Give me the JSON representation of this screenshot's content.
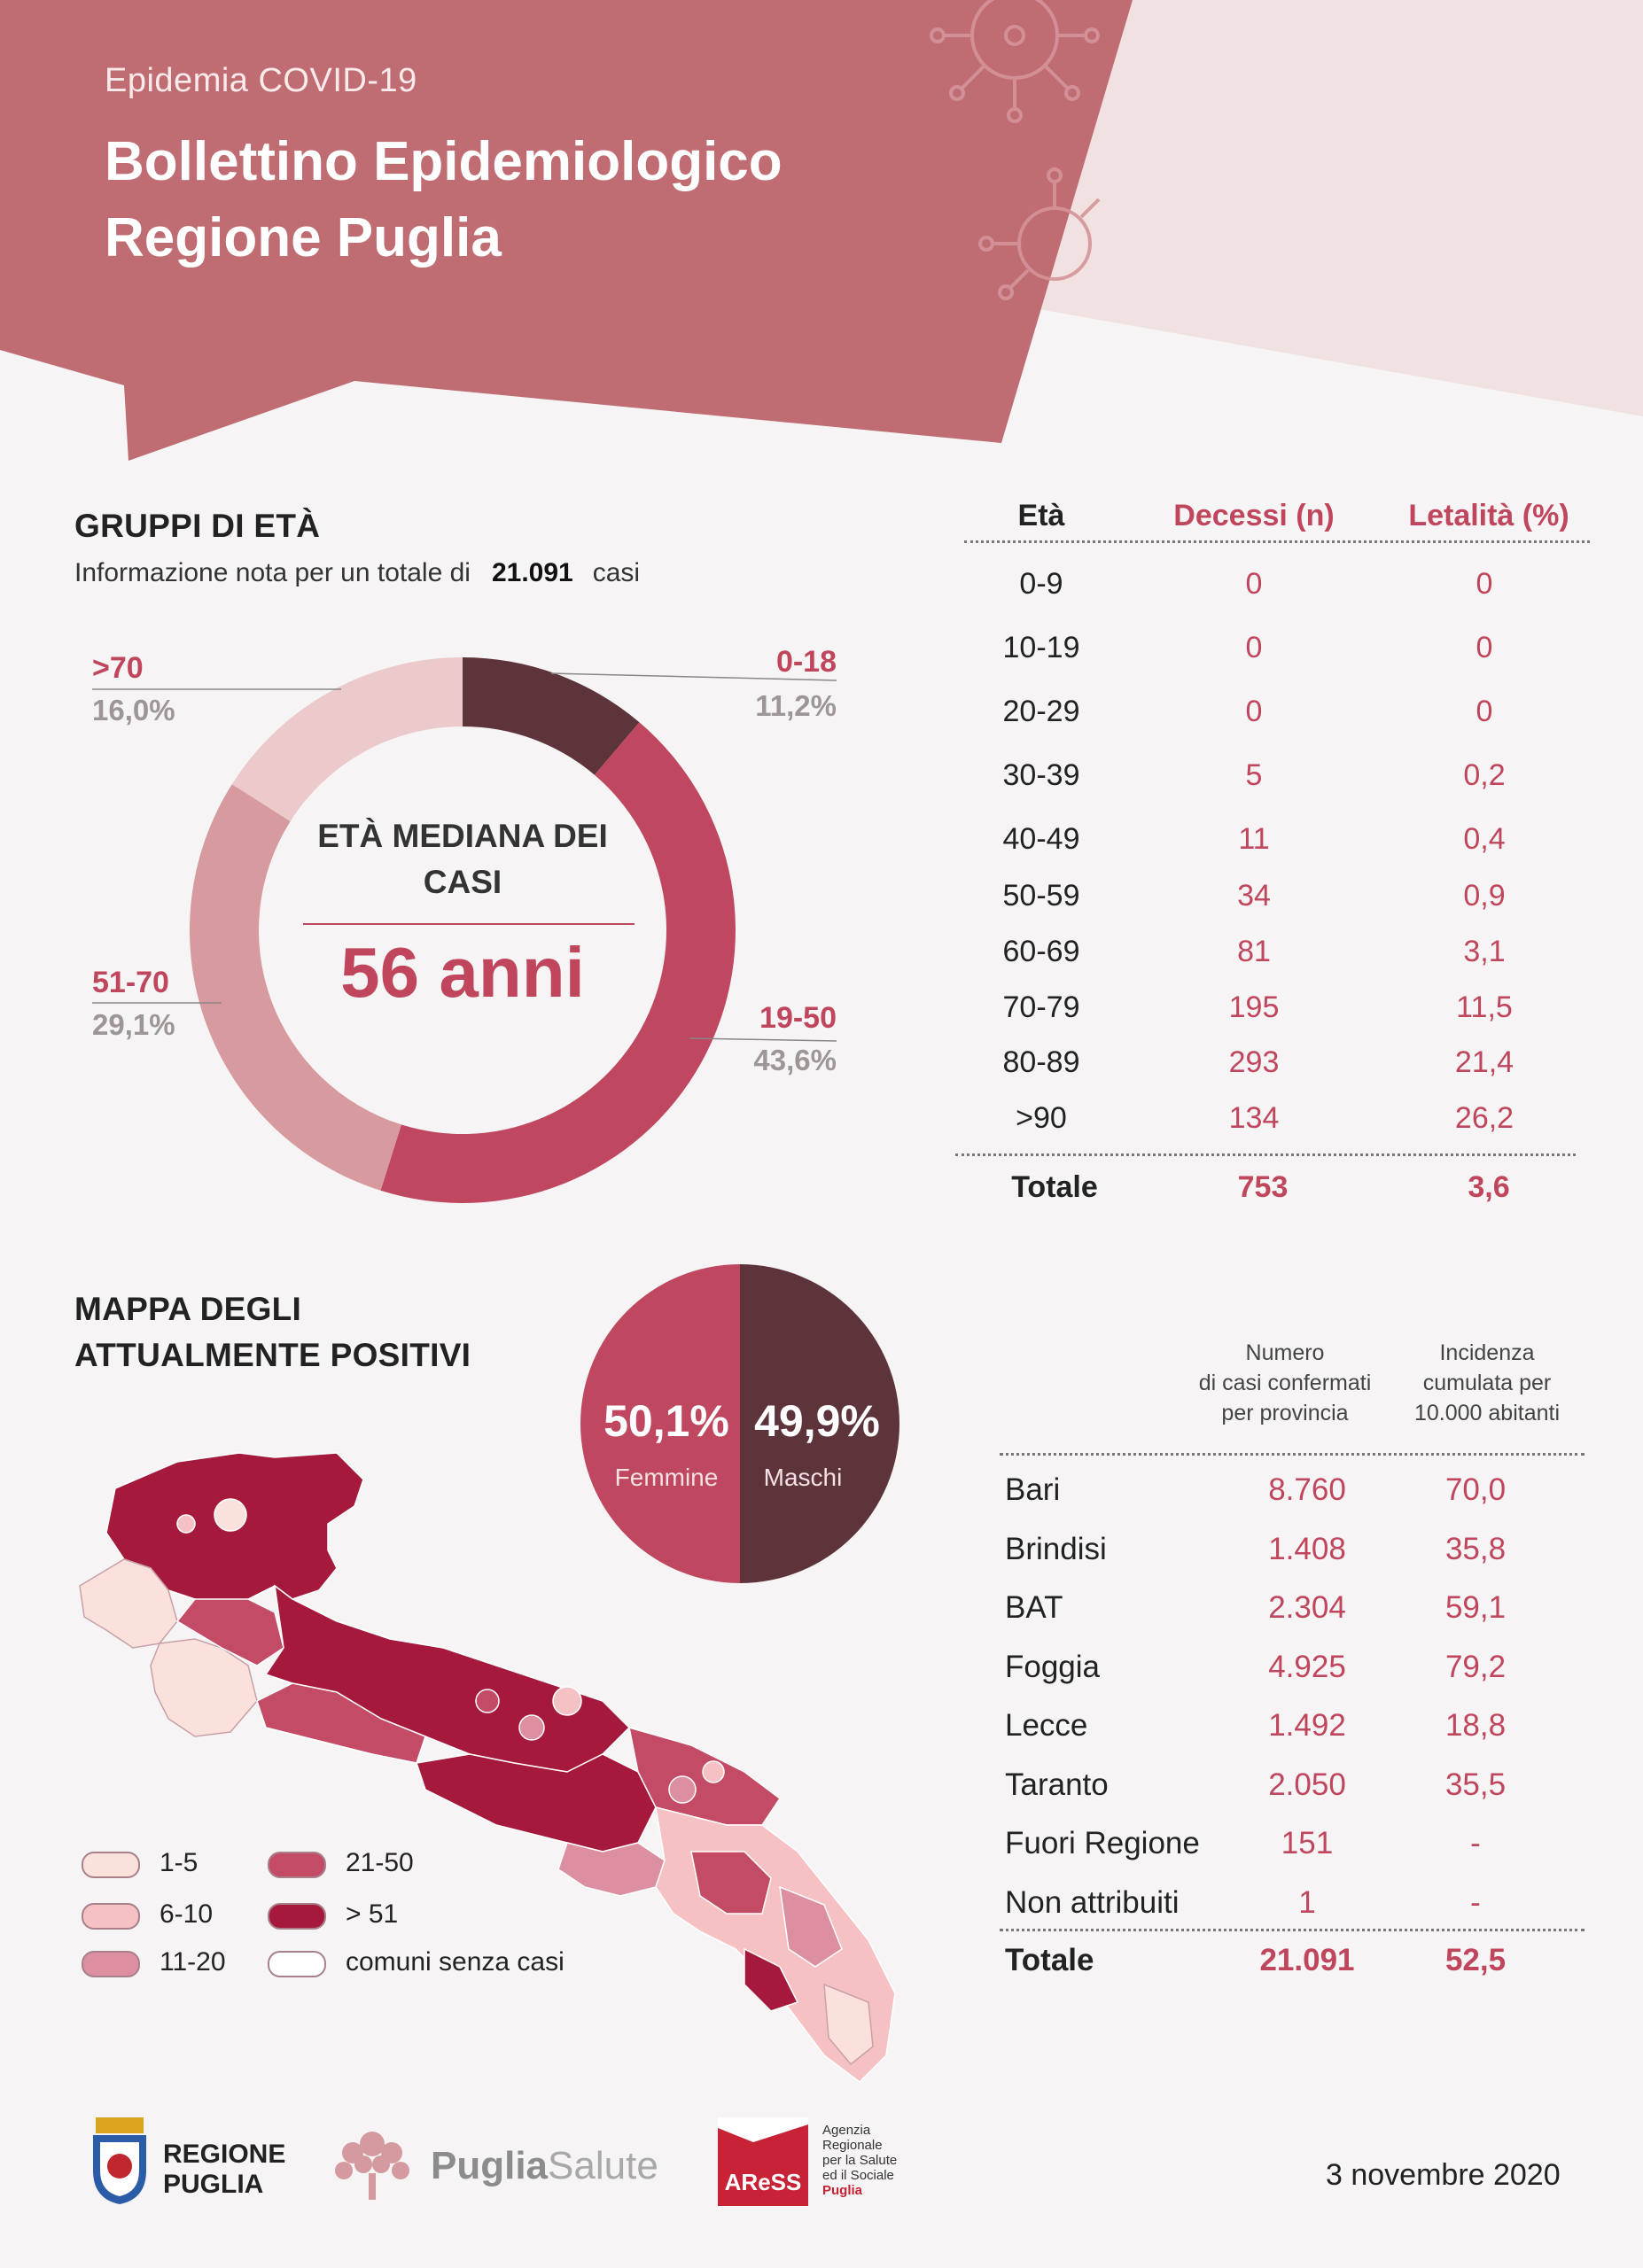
{
  "header": {
    "subtitle": "Epidemia COVID-19",
    "title_line1": "Bollettino Epidemiologico",
    "title_line2": "Regione Puglia"
  },
  "age_groups": {
    "title": "GRUPPI DI ETÀ",
    "note_prefix": "Informazione nota per un totale di",
    "note_value": "21.091",
    "note_suffix": "casi",
    "center_title": "ETÀ MEDIANA DEI CASI",
    "center_value": "56 anni"
  },
  "chart_data": {
    "type": "pie",
    "categories": [
      "0-18",
      "19-50",
      "51-70",
      ">70"
    ],
    "values": [
      11.2,
      43.6,
      29.1,
      16.0
    ],
    "labels_pct": [
      "11,2%",
      "43,6%",
      "29,1%",
      "16,0%"
    ],
    "colors": [
      "#5e343b",
      "#bf4860",
      "#d69a9f",
      "#ecc9cb"
    ],
    "title": "",
    "legend": "none"
  },
  "deaths_table": {
    "headers": [
      "Età",
      "Decessi (n)",
      "Letalità (%)"
    ],
    "rows": [
      [
        "0-9",
        "0",
        "0"
      ],
      [
        "10-19",
        "0",
        "0"
      ],
      [
        "20-29",
        "0",
        "0"
      ],
      [
        "30-39",
        "5",
        "0,2"
      ],
      [
        "40-49",
        "11",
        "0,4"
      ],
      [
        "50-59",
        "34",
        "0,9"
      ],
      [
        "60-69",
        "81",
        "3,1"
      ],
      [
        "70-79",
        "195",
        "11,5"
      ],
      [
        "80-89",
        "293",
        "21,4"
      ],
      [
        ">90",
        "134",
        "26,2"
      ]
    ],
    "total": [
      "Totale",
      "753",
      "3,6"
    ]
  },
  "map": {
    "title_line1": "MAPPA DEGLI",
    "title_line2": "ATTUALMENTE POSITIVI",
    "legend": [
      {
        "label": "1-5",
        "color": "#fbe1dc"
      },
      {
        "label": "6-10",
        "color": "#f5c1c3"
      },
      {
        "label": "11-20",
        "color": "#dc8fa1"
      },
      {
        "label": "21-50",
        "color": "#c34b66"
      },
      {
        "label": "> 51",
        "color": "#a5193c"
      },
      {
        "label": "comuni senza casi",
        "color": "#ffffff"
      }
    ]
  },
  "gender": {
    "female_pct": "50,1%",
    "female_label": "Femmine",
    "male_pct": "49,9%",
    "male_label": "Maschi",
    "female_value": 50.1,
    "male_value": 49.9
  },
  "province_table": {
    "header_col2_l1": "Numero",
    "header_col2_l2": "di casi confermati",
    "header_col2_l3": "per provincia",
    "header_col3_l1": "Incidenza",
    "header_col3_l2": "cumulata per",
    "header_col3_l3": "10.000 abitanti",
    "rows": [
      [
        "Bari",
        "8.760",
        "70,0"
      ],
      [
        "Brindisi",
        "1.408",
        "35,8"
      ],
      [
        "BAT",
        "2.304",
        "59,1"
      ],
      [
        "Foggia",
        "4.925",
        "79,2"
      ],
      [
        "Lecce",
        "1.492",
        "18,8"
      ],
      [
        "Taranto",
        "2.050",
        "35,5"
      ],
      [
        "Fuori Regione",
        "151",
        "-"
      ],
      [
        "Non attribuiti",
        "1",
        "-"
      ]
    ],
    "total": [
      "Totale",
      "21.091",
      "52,5"
    ]
  },
  "footer": {
    "logo1_l1": "REGIONE",
    "logo1_l2": "PUGLIA",
    "logo2_a": "Puglia",
    "logo2_b": "Salute",
    "logo3_mark": "AReSS",
    "logo3_l1": "Agenzia",
    "logo3_l2": "Regionale",
    "logo3_l3": "per la Salute",
    "logo3_l4": "ed il Sociale",
    "logo3_l5": "Puglia",
    "date": "3 novembre 2020"
  }
}
